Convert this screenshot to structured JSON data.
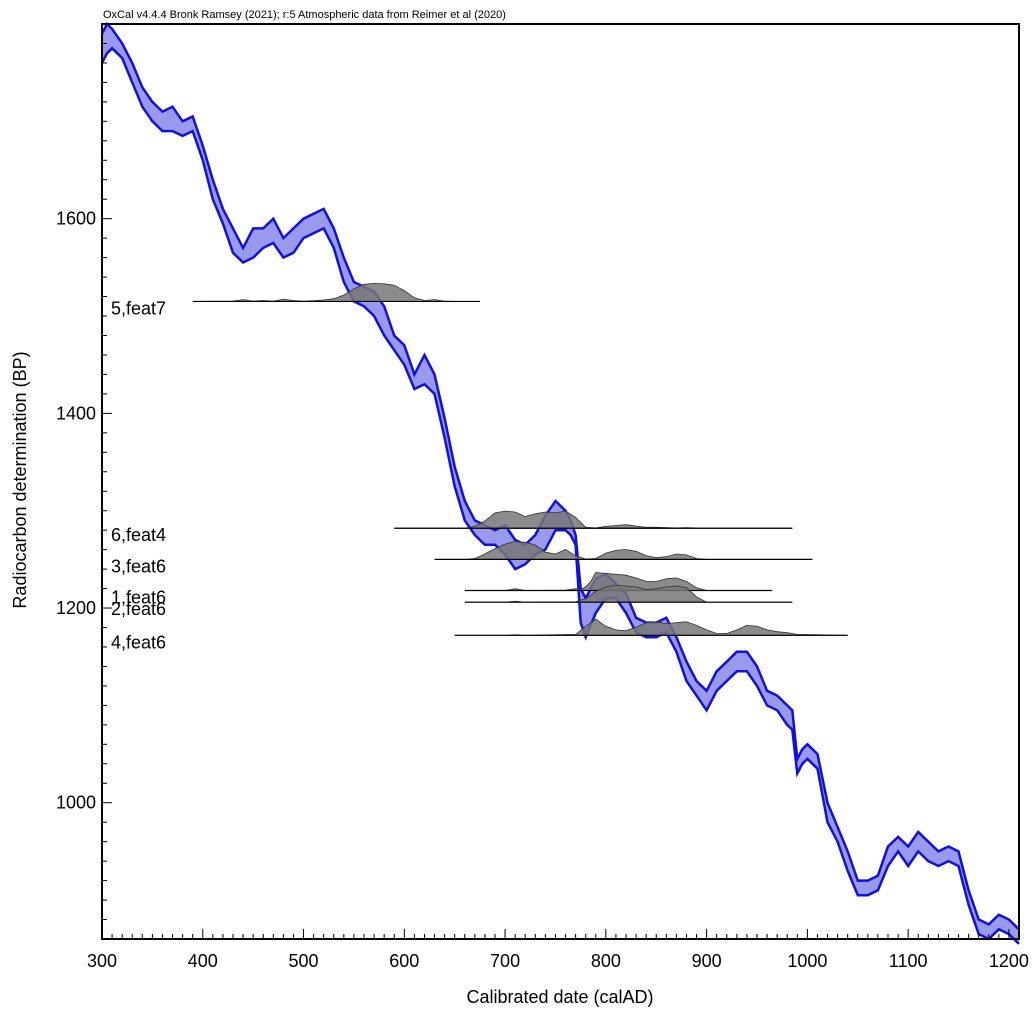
{
  "chart_data": {
    "type": "area",
    "title": "OxCal v4.4.4 Bronk Ramsey (2021); r:5 Atmospheric data from Reimer et al (2020)",
    "xlabel": "Calibrated date (calAD)",
    "ylabel": "Radiocarbon determination (BP)",
    "xlim": [
      300,
      1210
    ],
    "ylim": [
      860,
      1800
    ],
    "x_ticks": [
      "300",
      "400",
      "500",
      "600",
      "700",
      "800",
      "900",
      "1000",
      "1100",
      "1200"
    ],
    "y_ticks": [
      "1000",
      "1200",
      "1400",
      "1600"
    ],
    "grid": false,
    "colors": {
      "curve_stroke": "#1010e0",
      "curve_fill": "#9999ee",
      "distribution_fill": "#777777",
      "axis": "#000000"
    },
    "calibration_curve": {
      "x": [
        300,
        305,
        310,
        320,
        330,
        340,
        350,
        360,
        370,
        380,
        390,
        400,
        410,
        420,
        430,
        440,
        450,
        460,
        470,
        480,
        490,
        500,
        510,
        520,
        530,
        540,
        550,
        560,
        570,
        580,
        590,
        600,
        610,
        620,
        630,
        640,
        650,
        660,
        670,
        680,
        690,
        700,
        710,
        720,
        730,
        740,
        750,
        760,
        765,
        770,
        775,
        780,
        790,
        800,
        810,
        820,
        830,
        840,
        850,
        860,
        870,
        880,
        890,
        900,
        910,
        920,
        930,
        940,
        950,
        960,
        970,
        980,
        985,
        990,
        995,
        1000,
        1010,
        1020,
        1030,
        1040,
        1050,
        1060,
        1070,
        1080,
        1090,
        1100,
        1110,
        1120,
        1130,
        1140,
        1150,
        1160,
        1170,
        1180,
        1190,
        1200,
        1210
      ],
      "upper": [
        1790,
        1800,
        1795,
        1780,
        1760,
        1735,
        1720,
        1710,
        1715,
        1700,
        1705,
        1675,
        1640,
        1610,
        1590,
        1570,
        1590,
        1590,
        1600,
        1580,
        1590,
        1600,
        1605,
        1610,
        1590,
        1560,
        1535,
        1530,
        1525,
        1510,
        1480,
        1470,
        1440,
        1460,
        1440,
        1395,
        1345,
        1310,
        1290,
        1285,
        1280,
        1285,
        1270,
        1265,
        1275,
        1295,
        1310,
        1300,
        1290,
        1275,
        1220,
        1210,
        1230,
        1235,
        1225,
        1215,
        1190,
        1185,
        1185,
        1190,
        1170,
        1145,
        1125,
        1115,
        1135,
        1145,
        1155,
        1155,
        1140,
        1115,
        1110,
        1100,
        1095,
        1045,
        1055,
        1060,
        1050,
        1000,
        975,
        950,
        920,
        920,
        925,
        955,
        965,
        955,
        970,
        960,
        950,
        955,
        950,
        910,
        880,
        875,
        885,
        880,
        870
      ],
      "lower": [
        1760,
        1770,
        1775,
        1765,
        1740,
        1715,
        1700,
        1690,
        1690,
        1685,
        1690,
        1660,
        1620,
        1595,
        1565,
        1555,
        1560,
        1570,
        1575,
        1560,
        1565,
        1580,
        1585,
        1590,
        1570,
        1535,
        1515,
        1510,
        1500,
        1480,
        1465,
        1450,
        1425,
        1430,
        1420,
        1375,
        1325,
        1290,
        1275,
        1265,
        1265,
        1255,
        1240,
        1245,
        1255,
        1260,
        1280,
        1280,
        1275,
        1265,
        1185,
        1170,
        1195,
        1210,
        1210,
        1195,
        1175,
        1170,
        1170,
        1175,
        1155,
        1125,
        1110,
        1095,
        1115,
        1125,
        1135,
        1135,
        1120,
        1100,
        1095,
        1080,
        1075,
        1030,
        1040,
        1045,
        1035,
        980,
        960,
        930,
        905,
        905,
        910,
        935,
        950,
        935,
        950,
        940,
        935,
        940,
        935,
        895,
        865,
        860,
        870,
        865,
        855
      ]
    },
    "distributions": [
      {
        "label": "5,feat7",
        "x_start": 390,
        "x_end": 675,
        "baseline": 1515,
        "x": [
          390,
          430,
          440,
          450,
          460,
          470,
          480,
          490,
          500,
          510,
          520,
          530,
          540,
          550,
          560,
          570,
          580,
          590,
          600,
          610,
          620,
          630,
          640,
          650,
          660,
          675
        ],
        "density": [
          0,
          0.02,
          0.1,
          0.02,
          0.05,
          0.02,
          0.12,
          0.05,
          0.02,
          0.04,
          0.08,
          0.15,
          0.35,
          0.7,
          0.95,
          1.0,
          0.98,
          0.9,
          0.6,
          0.2,
          0.05,
          0.1,
          0.02,
          0.0,
          0.0,
          0
        ]
      },
      {
        "label": "6,feat4",
        "x_start": 590,
        "x_end": 985,
        "baseline": 1282,
        "x": [
          590,
          660,
          670,
          680,
          690,
          700,
          710,
          720,
          730,
          740,
          750,
          760,
          770,
          780,
          790,
          800,
          810,
          820,
          830,
          840,
          850,
          870,
          880,
          900,
          985
        ],
        "density": [
          0,
          0.0,
          0.1,
          0.4,
          0.85,
          0.95,
          0.9,
          0.65,
          0.8,
          0.9,
          0.85,
          0.95,
          0.6,
          0.05,
          0.02,
          0.1,
          0.15,
          0.2,
          0.12,
          0.05,
          0.05,
          0.02,
          0.03,
          0.0,
          0
        ]
      },
      {
        "label": "3,feat6",
        "x_start": 630,
        "x_end": 1005,
        "baseline": 1250,
        "x": [
          630,
          660,
          670,
          680,
          690,
          700,
          710,
          720,
          730,
          740,
          750,
          760,
          770,
          780,
          790,
          800,
          810,
          820,
          830,
          840,
          850,
          860,
          870,
          880,
          890,
          900,
          1005
        ],
        "density": [
          0,
          0.0,
          0.05,
          0.3,
          0.6,
          0.85,
          1.0,
          0.95,
          0.8,
          0.4,
          0.3,
          0.55,
          0.2,
          0.02,
          0.05,
          0.35,
          0.5,
          0.55,
          0.45,
          0.2,
          0.1,
          0.15,
          0.3,
          0.25,
          0.05,
          0.0,
          0
        ]
      },
      {
        "label": "1,feat6",
        "x_start": 660,
        "x_end": 965,
        "baseline": 1218,
        "x": [
          660,
          700,
          710,
          720,
          760,
          770,
          775,
          780,
          785,
          790,
          800,
          810,
          820,
          830,
          840,
          850,
          860,
          870,
          880,
          890,
          900,
          965
        ],
        "density": [
          0,
          0.0,
          0.1,
          0.0,
          0.02,
          0.1,
          0.05,
          0.2,
          0.5,
          1.0,
          0.95,
          0.9,
          0.85,
          0.7,
          0.5,
          0.5,
          0.65,
          0.7,
          0.5,
          0.15,
          0.0,
          0
        ]
      },
      {
        "label": "2,feat6",
        "x_start": 660,
        "x_end": 985,
        "baseline": 1206,
        "x": [
          660,
          700,
          710,
          720,
          770,
          780,
          790,
          800,
          810,
          820,
          830,
          840,
          850,
          860,
          870,
          880,
          890,
          900,
          985
        ],
        "density": [
          0,
          0.0,
          0.05,
          0.0,
          0.02,
          0.2,
          0.6,
          0.85,
          0.95,
          0.9,
          0.85,
          0.7,
          0.75,
          0.85,
          0.9,
          0.8,
          0.3,
          0.0,
          0
        ]
      },
      {
        "label": "4,feat6",
        "x_start": 650,
        "x_end": 1040,
        "baseline": 1172,
        "x": [
          650,
          700,
          710,
          720,
          770,
          780,
          790,
          800,
          810,
          820,
          830,
          840,
          850,
          860,
          870,
          880,
          890,
          900,
          910,
          920,
          930,
          940,
          950,
          960,
          970,
          980,
          990,
          1040
        ],
        "density": [
          0,
          0.0,
          0.03,
          0.0,
          0.05,
          0.5,
          0.9,
          0.5,
          0.3,
          0.25,
          0.45,
          0.7,
          0.75,
          0.65,
          0.7,
          0.75,
          0.55,
          0.3,
          0.1,
          0.1,
          0.3,
          0.55,
          0.5,
          0.3,
          0.2,
          0.15,
          0.05,
          0
        ]
      }
    ]
  }
}
